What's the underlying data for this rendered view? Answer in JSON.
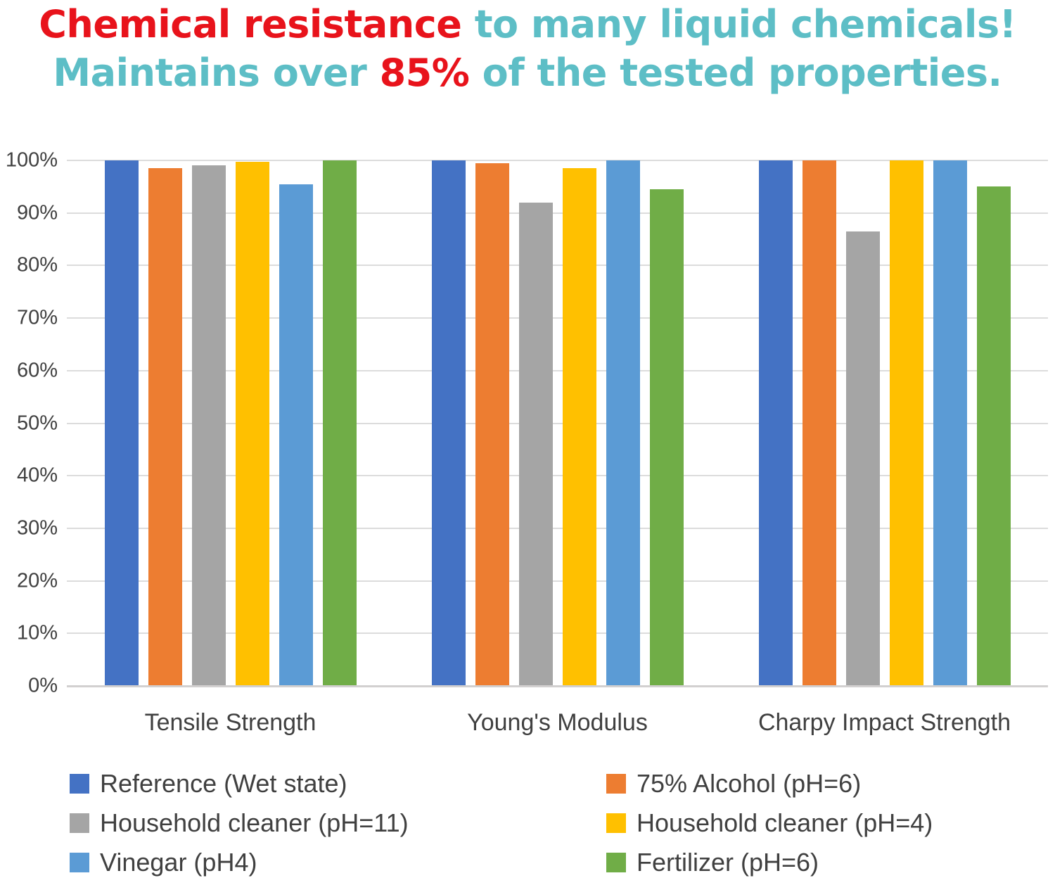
{
  "title": {
    "line1": [
      {
        "text": "Chemical resistance ",
        "color": "#e8131b"
      },
      {
        "text": "to many liquid chemicals!",
        "color": "#5dbec6"
      }
    ],
    "line2": [
      {
        "text": "Maintains over ",
        "color": "#5dbec6"
      },
      {
        "text": "85%",
        "color": "#e8131b"
      },
      {
        "text": " of the tested properties.",
        "color": "#5dbec6"
      }
    ]
  },
  "chart_data": {
    "type": "bar",
    "title": "Chemical resistance to many liquid chemicals! Maintains over 85% of the tested properties.",
    "categories": [
      "Tensile Strength",
      "Young's Modulus",
      "Charpy Impact Strength"
    ],
    "series": [
      {
        "name": "Reference (Wet state)",
        "color": "#4472C4",
        "values": [
          100,
          100,
          100
        ]
      },
      {
        "name": "75% Alcohol (pH=6)",
        "color": "#ED7D31",
        "values": [
          98.5,
          99.5,
          100
        ]
      },
      {
        "name": "Household cleaner (pH=11)",
        "color": "#A5A5A5",
        "values": [
          99,
          92,
          86.5
        ]
      },
      {
        "name": "Household cleaner (pH=4)",
        "color": "#FFC000",
        "values": [
          99.8,
          98.5,
          100
        ]
      },
      {
        "name": "Vinegar (pH4)",
        "color": "#5B9BD5",
        "values": [
          95.5,
          100,
          100
        ]
      },
      {
        "name": "Fertilizer (pH=6)",
        "color": "#70AD47",
        "values": [
          100,
          94.5,
          95
        ]
      }
    ],
    "xlabel": "",
    "ylabel": "",
    "ylim": [
      0,
      100
    ],
    "yticks": [
      "0%",
      "10%",
      "20%",
      "30%",
      "40%",
      "50%",
      "60%",
      "70%",
      "80%",
      "90%",
      "100%"
    ],
    "grid": true,
    "legend_position": "bottom",
    "colors": {
      "grid_line": "#dcdcdc",
      "axis_line": "#d2d0d0",
      "axis_text": "#404040"
    }
  }
}
